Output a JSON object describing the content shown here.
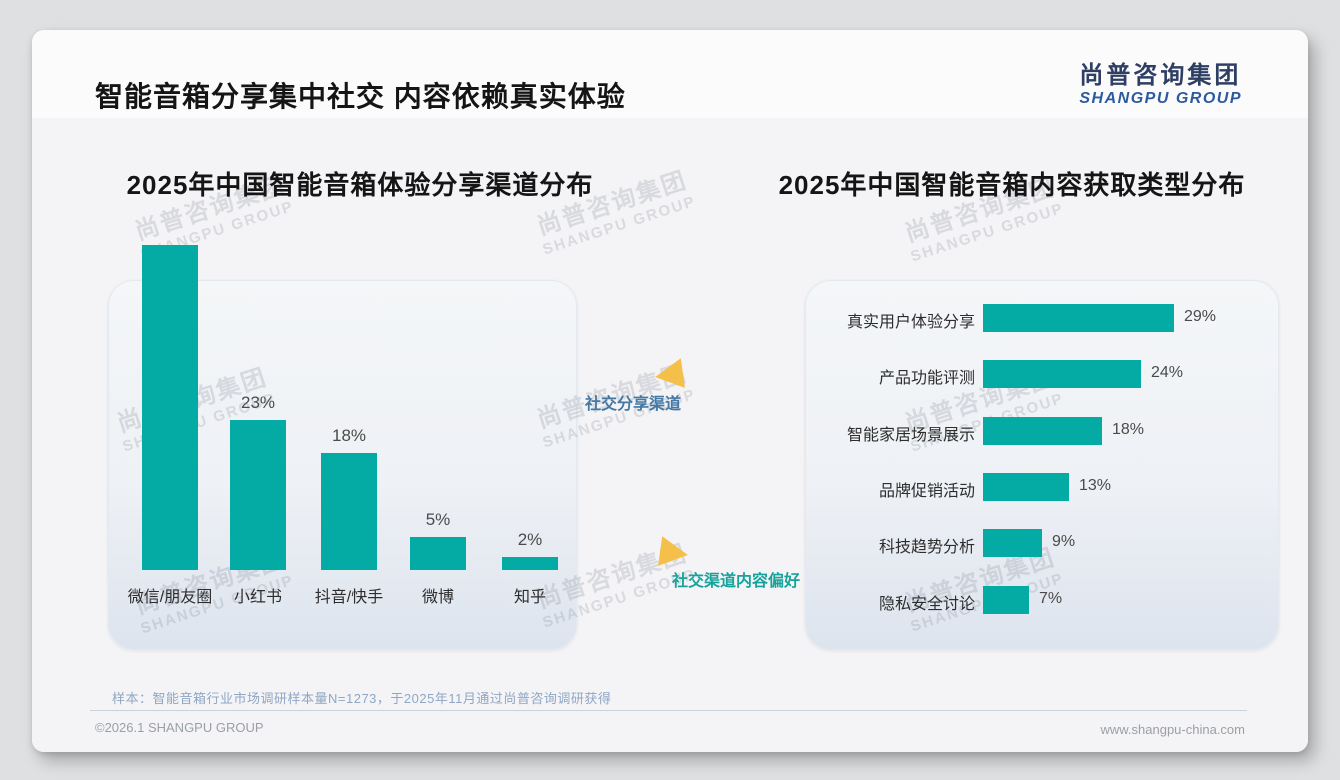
{
  "page": {
    "title": "智能音箱分享集中社交 内容依赖真实体验",
    "logo": {
      "cn": "尚普咨询集团",
      "en": "SHANGPU GROUP"
    }
  },
  "watermark": {
    "line1": "尚普咨询集团",
    "line2": "SHANGPU GROUP"
  },
  "colors": {
    "bar_teal": "#04aba4",
    "arrow_amber": "#f5c04a",
    "annotation_blue": "#4478a5",
    "annotation_teal": "#17a39b",
    "logo_navy": "#2f3f63",
    "logo_blue": "#2c5a9f"
  },
  "annotations": {
    "share_channel": {
      "label": "社交分享渠道"
    },
    "content_pref": {
      "label": "社交渠道内容偏好"
    }
  },
  "chart_data": [
    {
      "type": "bar",
      "orientation": "vertical",
      "title": "2025年中国智能音箱体验分享渠道分布",
      "categories": [
        "微信/朋友圈",
        "小红书",
        "抖音/快手",
        "微博",
        "知乎"
      ],
      "values": [
        50,
        23,
        18,
        5,
        2
      ],
      "value_labels": [
        "",
        "23%",
        "18%",
        "5%",
        "2%"
      ],
      "ylim": [
        0,
        50
      ],
      "grid": false,
      "legend": "none"
    },
    {
      "type": "bar",
      "orientation": "horizontal",
      "title": "2025年中国智能音箱内容获取类型分布",
      "categories": [
        "真实用户体验分享",
        "产品功能评测",
        "智能家居场景展示",
        "品牌促销活动",
        "科技趋势分析",
        "隐私安全讨论"
      ],
      "values": [
        29,
        24,
        18,
        13,
        9,
        7
      ],
      "value_labels": [
        "29%",
        "24%",
        "18%",
        "13%",
        "9%",
        "7%"
      ],
      "xlim": [
        0,
        32
      ],
      "grid": false,
      "legend": "none"
    }
  ],
  "footer": {
    "sample_note": "样本：智能音箱行业市场调研样本量N=1273，于2025年11月通过尚普咨询调研获得",
    "copyright": "©2026.1 SHANGPU GROUP",
    "website": "www.shangpu-china.com"
  }
}
